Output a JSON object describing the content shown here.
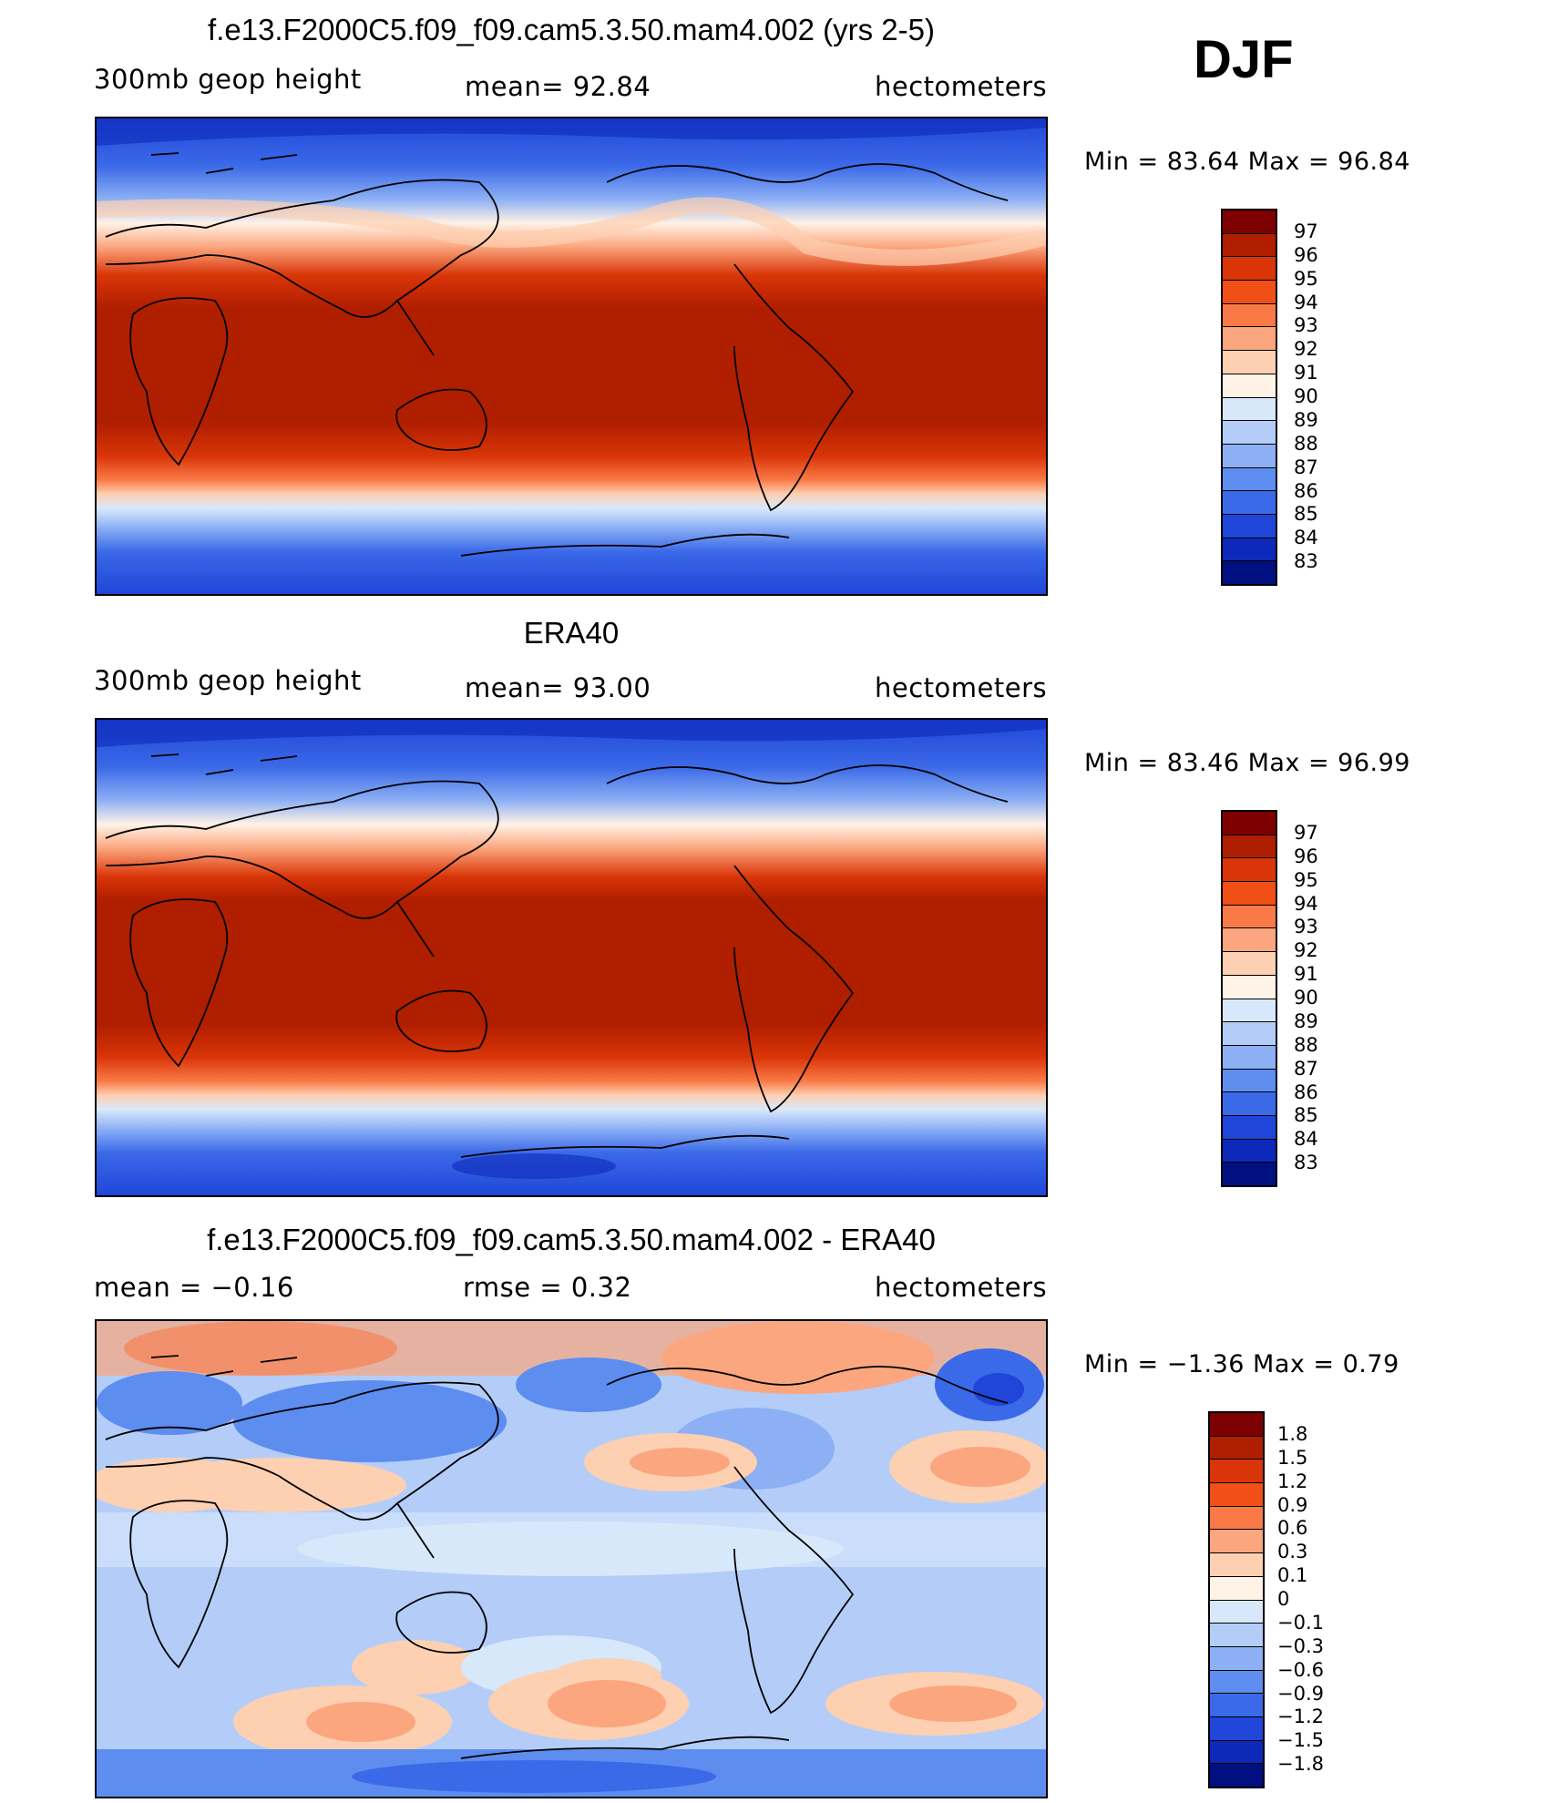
{
  "djf_label": "DJF",
  "panels": [
    {
      "title": "f.e13.F2000C5.f09_f09.cam5.3.50.mam4.002 (yrs 2-5)",
      "left_label": "300mb geop height",
      "center_label": "mean=  92.84",
      "right_label": "hectometers",
      "minmax": "Min =   83.64 Max =   96.84",
      "legend_ticks": [
        "97",
        "96",
        "95",
        "94",
        "93",
        "92",
        "91",
        "90",
        "89",
        "88",
        "87",
        "86",
        "85",
        "84",
        "83"
      ],
      "legend_colors": [
        "#7f0000",
        "#b01e00",
        "#d93508",
        "#f04f16",
        "#fa7a47",
        "#fba67e",
        "#fdd0b2",
        "#fff2e6",
        "#d8e8fb",
        "#b3cdf8",
        "#8db0f4",
        "#5e8df0",
        "#3b6ae8",
        "#1f46d9",
        "#0d29b9",
        "#001080"
      ]
    },
    {
      "title": "ERA40",
      "left_label": "300mb geop height",
      "center_label": "mean=  93.00",
      "right_label": "hectometers",
      "minmax": "Min =   83.46 Max =   96.99",
      "legend_ticks": [
        "97",
        "96",
        "95",
        "94",
        "93",
        "92",
        "91",
        "90",
        "89",
        "88",
        "87",
        "86",
        "85",
        "84",
        "83"
      ],
      "legend_colors": [
        "#7f0000",
        "#b01e00",
        "#d93508",
        "#f04f16",
        "#fa7a47",
        "#fba67e",
        "#fdd0b2",
        "#fff2e6",
        "#d8e8fb",
        "#b3cdf8",
        "#8db0f4",
        "#5e8df0",
        "#3b6ae8",
        "#1f46d9",
        "#0d29b9",
        "#001080"
      ]
    },
    {
      "title": "f.e13.F2000C5.f09_f09.cam5.3.50.mam4.002 - ERA40",
      "left_label": "mean =  −0.16",
      "center_label": "rmse =   0.32",
      "right_label": "hectometers",
      "minmax": "Min =  −1.36 Max =   0.79",
      "legend_ticks": [
        "1.8",
        "1.5",
        "1.2",
        "0.9",
        "0.6",
        "0.3",
        "0.1",
        "0",
        "−0.1",
        "−0.3",
        "−0.6",
        "−0.9",
        "−1.2",
        "−1.5",
        "−1.8"
      ],
      "legend_colors": [
        "#7f0000",
        "#b01e00",
        "#d93508",
        "#f04f16",
        "#fa7a47",
        "#fba67e",
        "#fdd0b2",
        "#fff2e6",
        "#d8e8fb",
        "#b3cdf8",
        "#8db0f4",
        "#5e8df0",
        "#3b6ae8",
        "#1f46d9",
        "#0d29b9",
        "#001080"
      ]
    }
  ]
}
